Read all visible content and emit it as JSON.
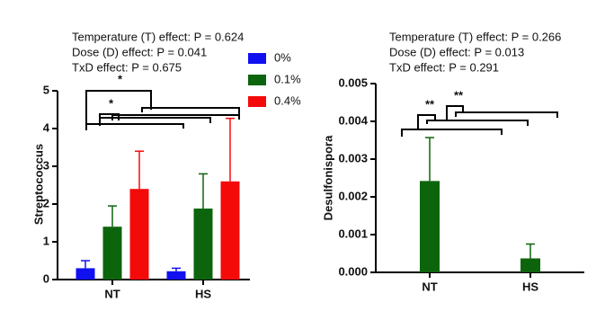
{
  "chart_data": [
    {
      "type": "bar",
      "annotations": [
        "Temperature (T) effect: P = 0.624",
        "Dose (D) effect: P = 0.041",
        "TxD effect: P = 0.675"
      ],
      "significance": [
        "*",
        "*"
      ],
      "y_label": "Streptococcus",
      "categories": [
        "NT",
        "HS"
      ],
      "series": [
        {
          "name": "0%",
          "color": "#1010f0",
          "values": [
            0.3,
            0.22
          ],
          "errors": [
            0.2,
            0.08
          ]
        },
        {
          "name": "0.1%",
          "color": "#0c640c",
          "values": [
            1.4,
            1.88
          ],
          "errors": [
            0.55,
            0.92
          ]
        },
        {
          "name": "0.4%",
          "color": "#f50a0a",
          "values": [
            2.4,
            2.6
          ],
          "errors": [
            1.0,
            1.67
          ]
        }
      ],
      "ylim": [
        0,
        5
      ],
      "yticks": [
        0,
        1,
        2,
        3,
        4,
        5
      ]
    },
    {
      "type": "bar",
      "annotations": [
        "Temperature (T) effect: P = 0.266",
        "Dose (D) effect: P = 0.013",
        "TxD effect: P = 0.291"
      ],
      "significance": [
        "**",
        "**"
      ],
      "y_label": "Desulfonispora",
      "categories": [
        "NT",
        "HS"
      ],
      "series": [
        {
          "color": "#0c640c",
          "values": [
            0.00242,
            0.00037
          ],
          "errors": [
            0.00115,
            0.00038
          ]
        }
      ],
      "ylim": [
        0,
        0.005
      ],
      "yticks": [
        {
          "value": 0,
          "label": "0.000"
        },
        0.001,
        0.002,
        0.003,
        0.004,
        0.005
      ]
    }
  ]
}
